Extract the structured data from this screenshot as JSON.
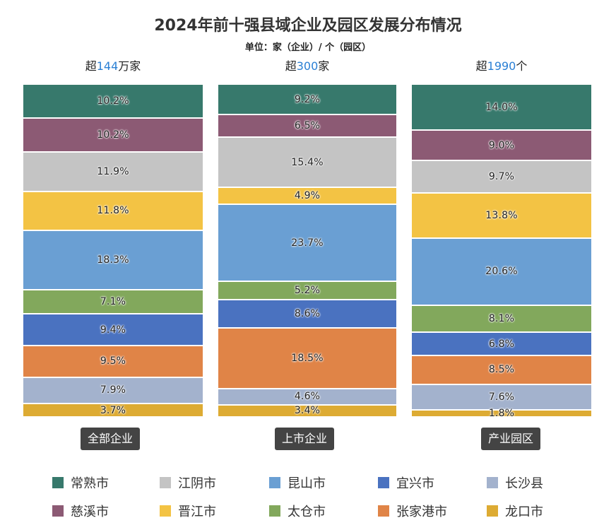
{
  "chart_data": {
    "type": "bar",
    "title": "2024年前十强县域企业及园区发展分布情况",
    "subtitle": "单位：家（企业）/ 个（园区）",
    "categories": [
      "全部企业",
      "上市企业",
      "产业园区"
    ],
    "headers": [
      {
        "prefix": "超",
        "num": "144",
        "suffix": "万家"
      },
      {
        "prefix": "超",
        "num": "300",
        "suffix": "家"
      },
      {
        "prefix": "超",
        "num": "1990",
        "suffix": "个"
      }
    ],
    "series": [
      {
        "name": "常熟市",
        "color": "#37796c",
        "values": [
          10.2,
          9.2,
          14.0
        ]
      },
      {
        "name": "慈溪市",
        "color": "#8c5a74",
        "values": [
          10.2,
          6.5,
          9.0
        ]
      },
      {
        "name": "江阴市",
        "color": "#c4c4c4",
        "values": [
          11.9,
          15.4,
          9.7
        ]
      },
      {
        "name": "晋江市",
        "color": "#f3c344",
        "values": [
          11.8,
          4.9,
          13.8
        ]
      },
      {
        "name": "昆山市",
        "color": "#6a9fd3",
        "values": [
          18.3,
          23.7,
          20.6
        ]
      },
      {
        "name": "太仓市",
        "color": "#82a85c",
        "values": [
          7.1,
          5.2,
          8.1
        ]
      },
      {
        "name": "宜兴市",
        "color": "#4a72c0",
        "values": [
          9.4,
          8.6,
          6.8
        ]
      },
      {
        "name": "张家港市",
        "color": "#e08447",
        "values": [
          9.5,
          18.5,
          8.5
        ]
      },
      {
        "name": "长沙县",
        "color": "#a3b2cd",
        "values": [
          7.9,
          4.6,
          7.6
        ]
      },
      {
        "name": "龙口市",
        "color": "#ddab33",
        "values": [
          3.7,
          3.4,
          1.8
        ]
      }
    ],
    "legend_order": [
      "常熟市",
      "江阴市",
      "昆山市",
      "宜兴市",
      "长沙县",
      "慈溪市",
      "晋江市",
      "太仓市",
      "张家港市",
      "龙口市"
    ],
    "unit": "%"
  }
}
